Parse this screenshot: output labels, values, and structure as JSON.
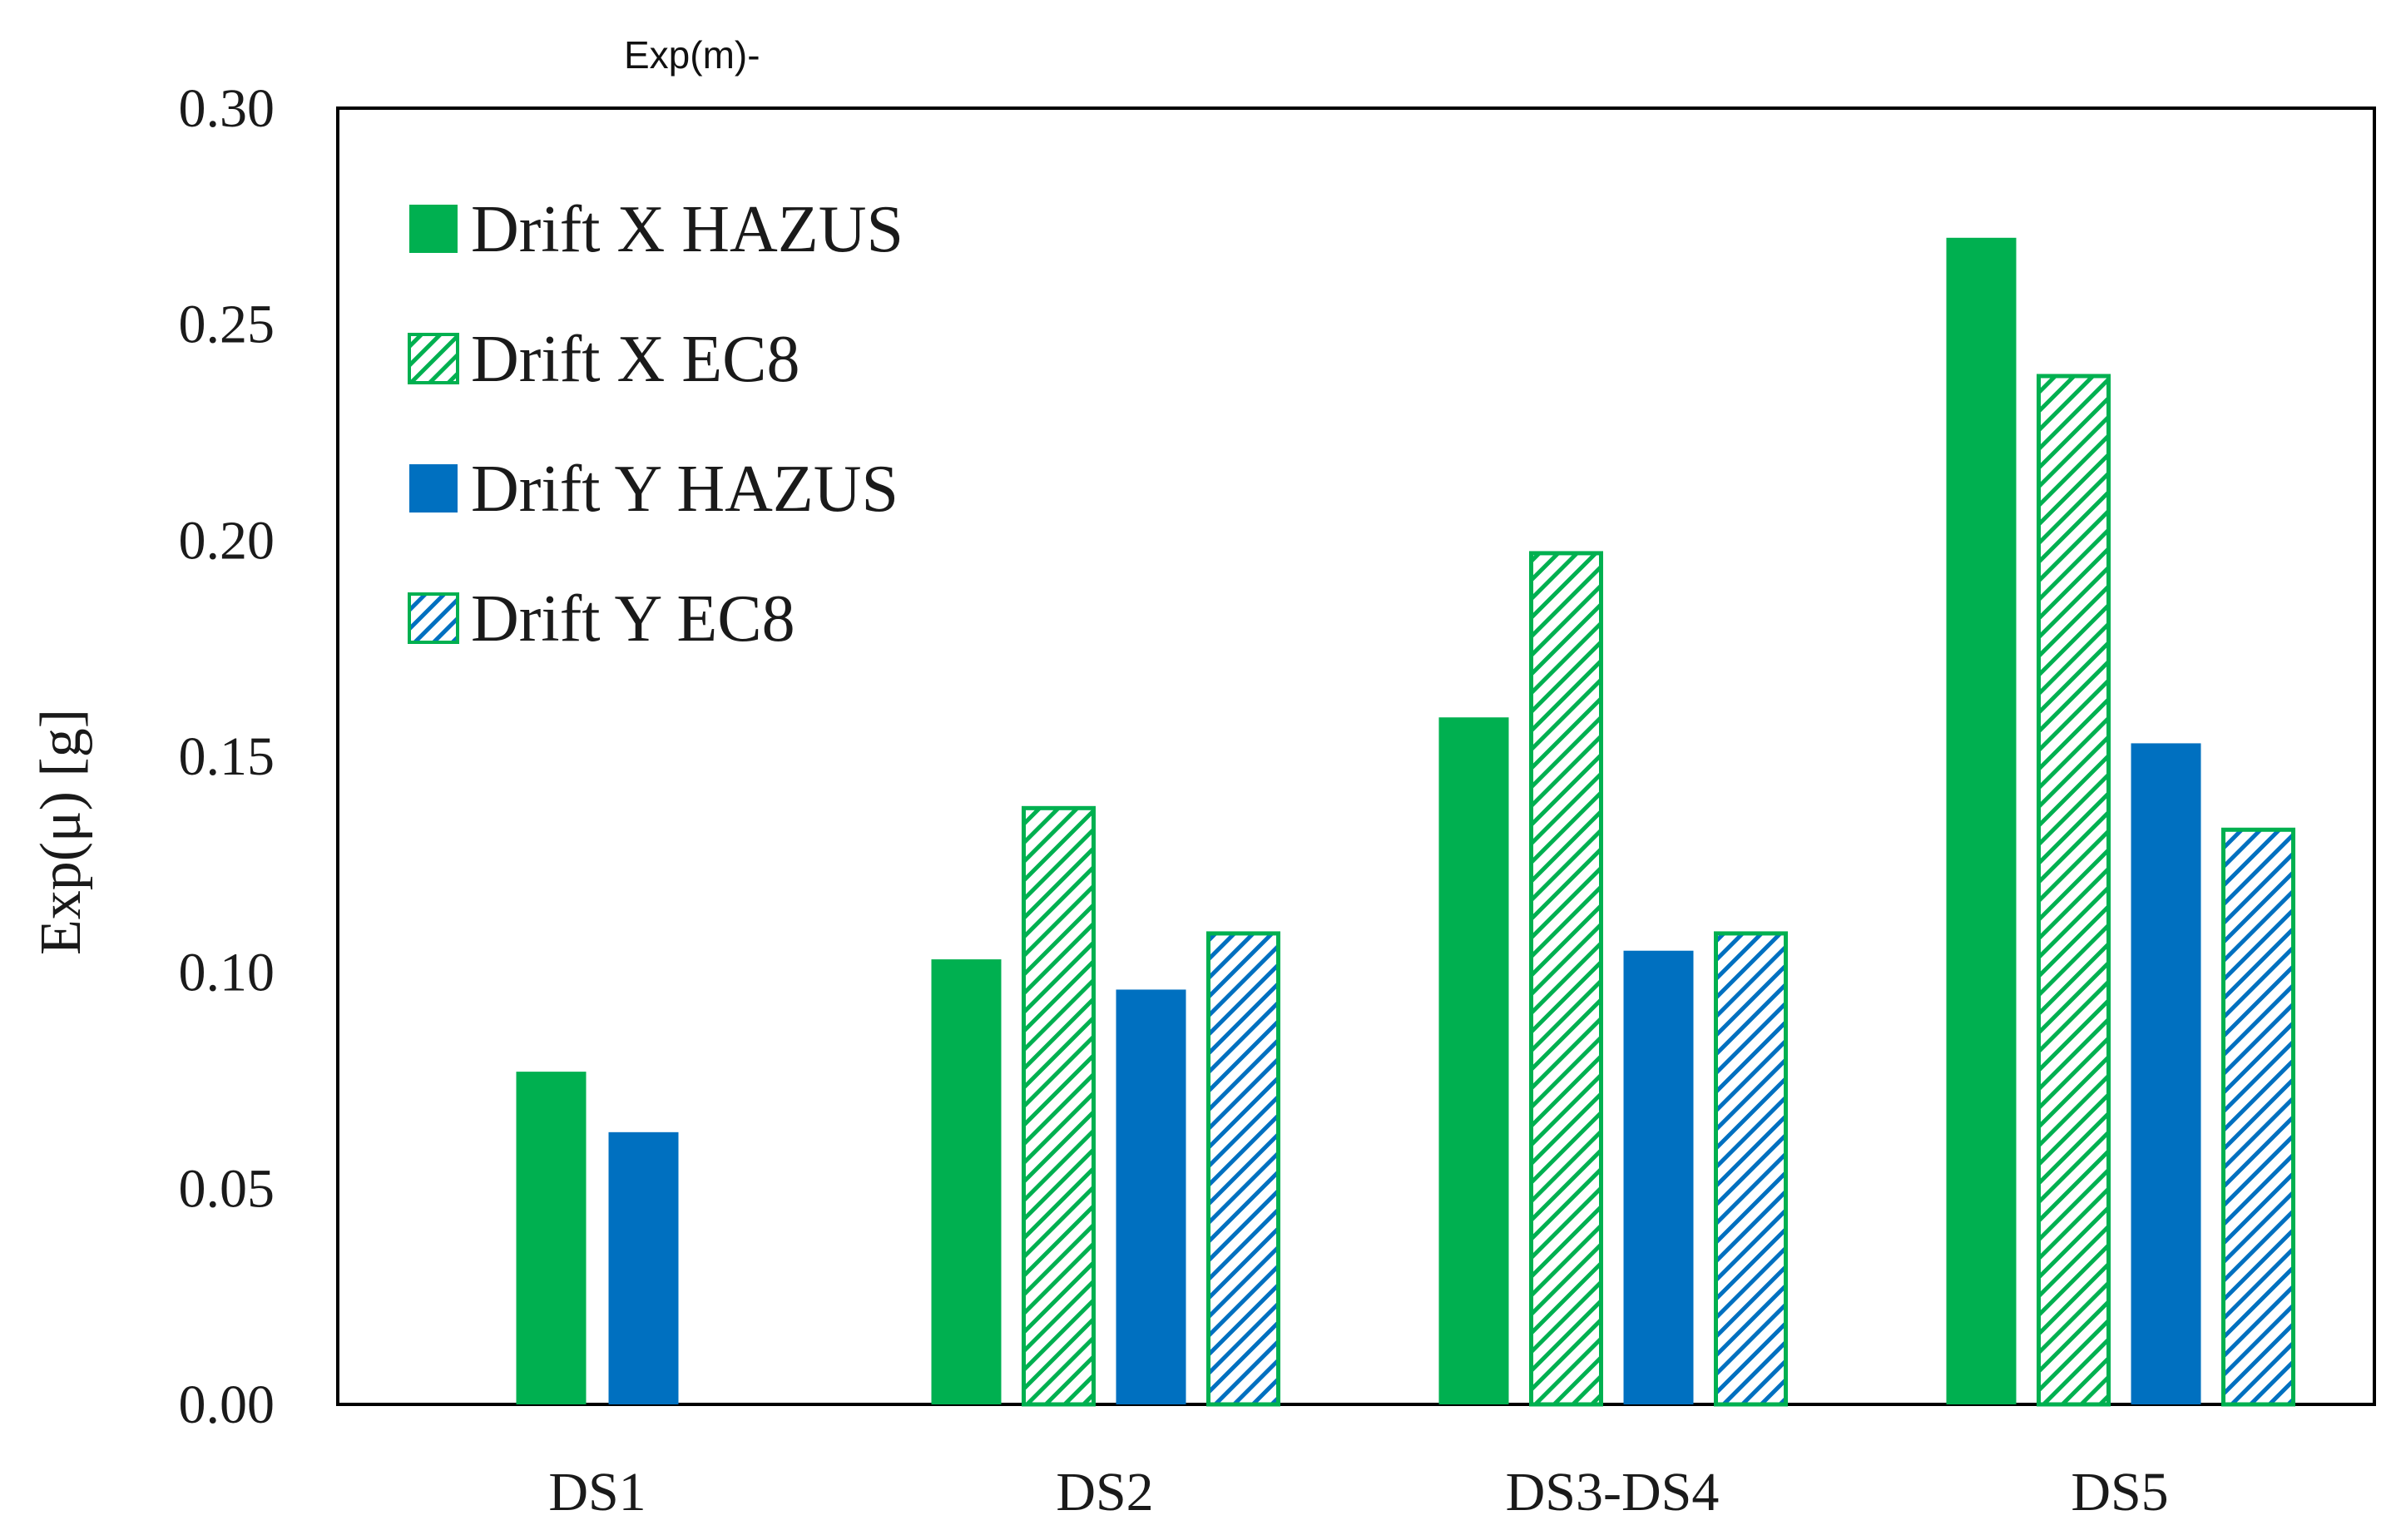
{
  "chart_data": {
    "type": "bar",
    "title": "",
    "overlay_text": "Exp(m)-",
    "xlabel": "",
    "ylabel": "Exp(μ) [g]",
    "ylim": [
      0,
      0.3
    ],
    "yticks": [
      "0.00",
      "0.05",
      "0.10",
      "0.15",
      "0.20",
      "0.25",
      "0.30"
    ],
    "ytick_values": [
      0,
      0.05,
      0.1,
      0.15,
      0.2,
      0.25,
      0.3
    ],
    "grid": false,
    "legend_position": "top-left",
    "categories": [
      "DS1",
      "DS2",
      "DS3-DS4",
      "DS5"
    ],
    "series": [
      {
        "name": "Drift X HAZUS",
        "values": [
          0.077,
          0.103,
          0.159,
          0.27
        ],
        "color": "#00b050",
        "pattern": "solid"
      },
      {
        "name": "Drift X EC8",
        "values": [
          null,
          0.138,
          0.197,
          0.238
        ],
        "color": "#00b050",
        "pattern": "hatched"
      },
      {
        "name": "Drift Y HAZUS",
        "values": [
          0.063,
          0.096,
          0.105,
          0.153
        ],
        "color": "#0070c0",
        "pattern": "solid"
      },
      {
        "name": "Drift Y EC8",
        "values": [
          null,
          0.109,
          0.109,
          0.133
        ],
        "color": "#0070c0",
        "pattern": "hatched",
        "border_color": "#00b050"
      }
    ]
  }
}
